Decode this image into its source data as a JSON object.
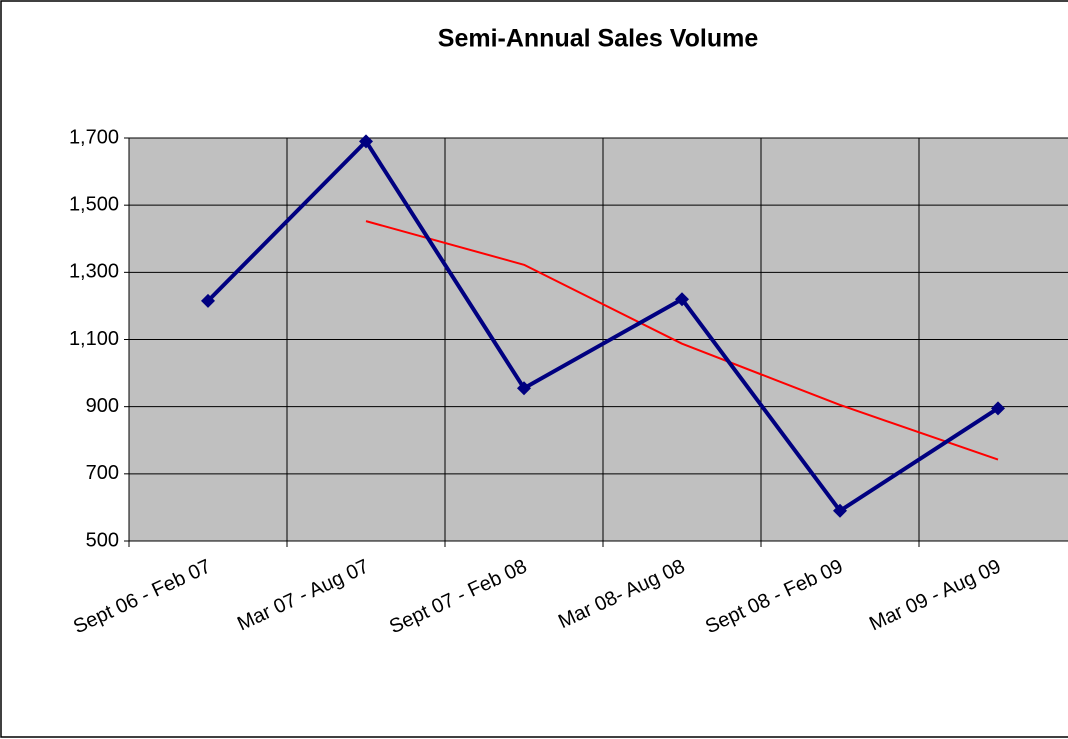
{
  "chart_data": {
    "type": "line",
    "title": "Semi-Annual Sales Volume",
    "categories": [
      "Sept 06 - Feb 07",
      "Mar 07 - Aug 07",
      "Sept 07 - Feb 08",
      "Mar 08- Aug 08",
      "Sept 08 - Feb 09",
      "Mar 09 - Aug 09"
    ],
    "series": [
      {
        "color": "#000080",
        "values": [
          1215,
          1690,
          955,
          1220,
          590,
          895
        ]
      },
      {
        "color": "#ff0000",
        "values": [
          null,
          1452.5,
          1322.5,
          1087.5,
          905,
          742.5
        ]
      }
    ],
    "ylim": [
      500,
      1700
    ],
    "yticks": [
      {
        "value": 500,
        "label": "500"
      },
      {
        "value": 700,
        "label": "700"
      },
      {
        "value": 900,
        "label": "900"
      },
      {
        "value": 1100,
        "label": "1,100"
      },
      {
        "value": 1300,
        "label": "1,300"
      },
      {
        "value": 1500,
        "label": "1,500"
      },
      {
        "value": 1700,
        "label": "1,700"
      }
    ],
    "grid": true,
    "plot_background": "#c0c0c0"
  }
}
